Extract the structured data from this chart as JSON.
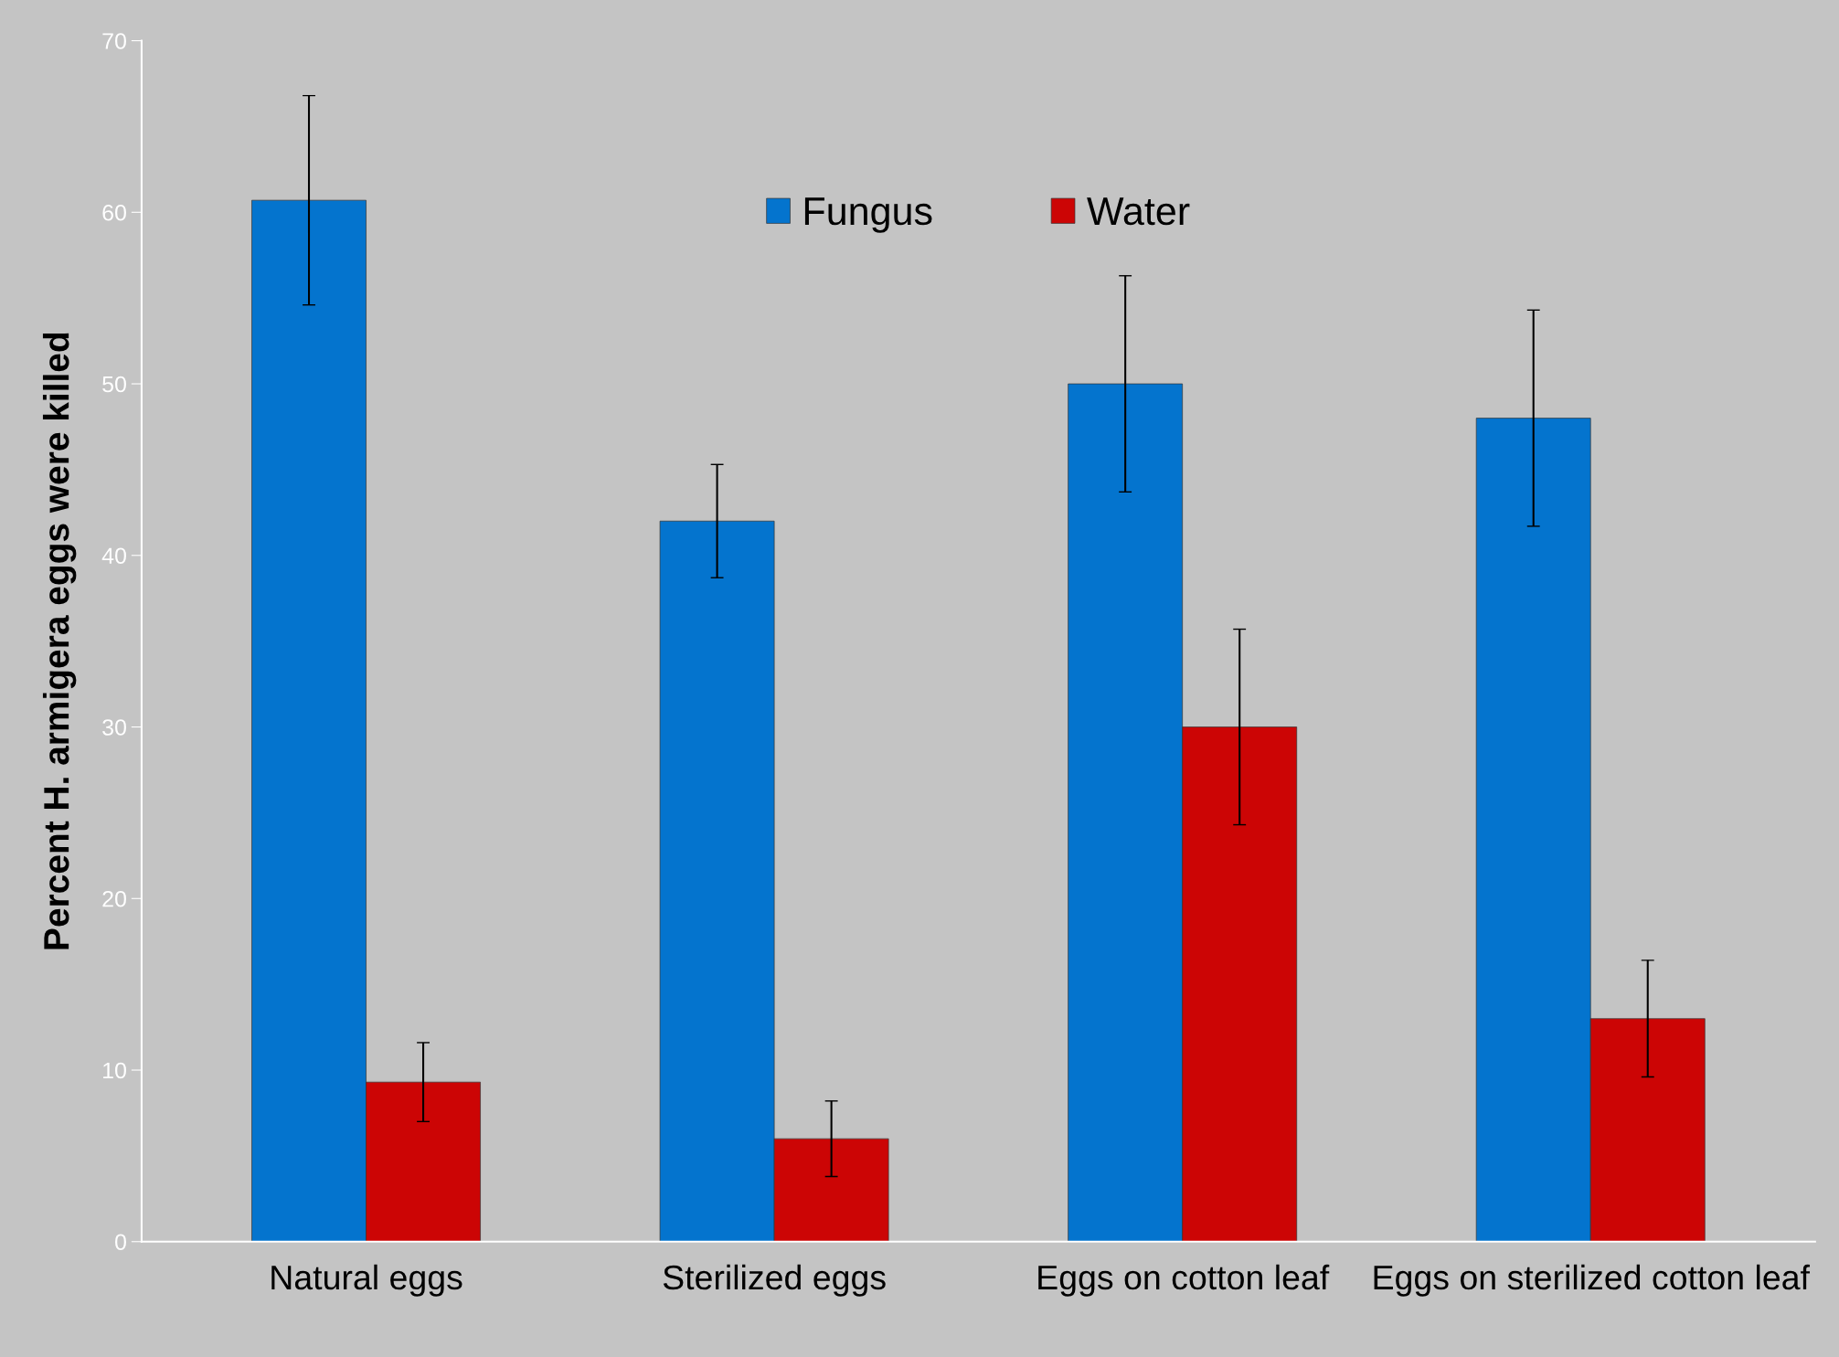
{
  "chart_data": {
    "type": "bar",
    "ylabel": "Percent H. armigera eggs were killed",
    "categories": [
      "Natural eggs",
      "Sterilized eggs",
      "Eggs on cotton leaf",
      "Eggs on sterilized cotton leaf"
    ],
    "series": [
      {
        "name": "Fungus",
        "color": "#0474ce",
        "values": [
          60.7,
          42,
          50,
          48
        ],
        "errors": [
          6.1,
          3.3,
          6.3,
          6.3
        ]
      },
      {
        "name": "Water",
        "color": "#cc0505",
        "values": [
          9.3,
          6,
          30,
          13
        ],
        "errors": [
          2.3,
          2.2,
          5.7,
          3.4
        ]
      }
    ],
    "ylim": [
      0,
      70
    ],
    "yticks": [
      0,
      10,
      20,
      30,
      40,
      50,
      60,
      70
    ],
    "grid": false,
    "legend": "top"
  }
}
